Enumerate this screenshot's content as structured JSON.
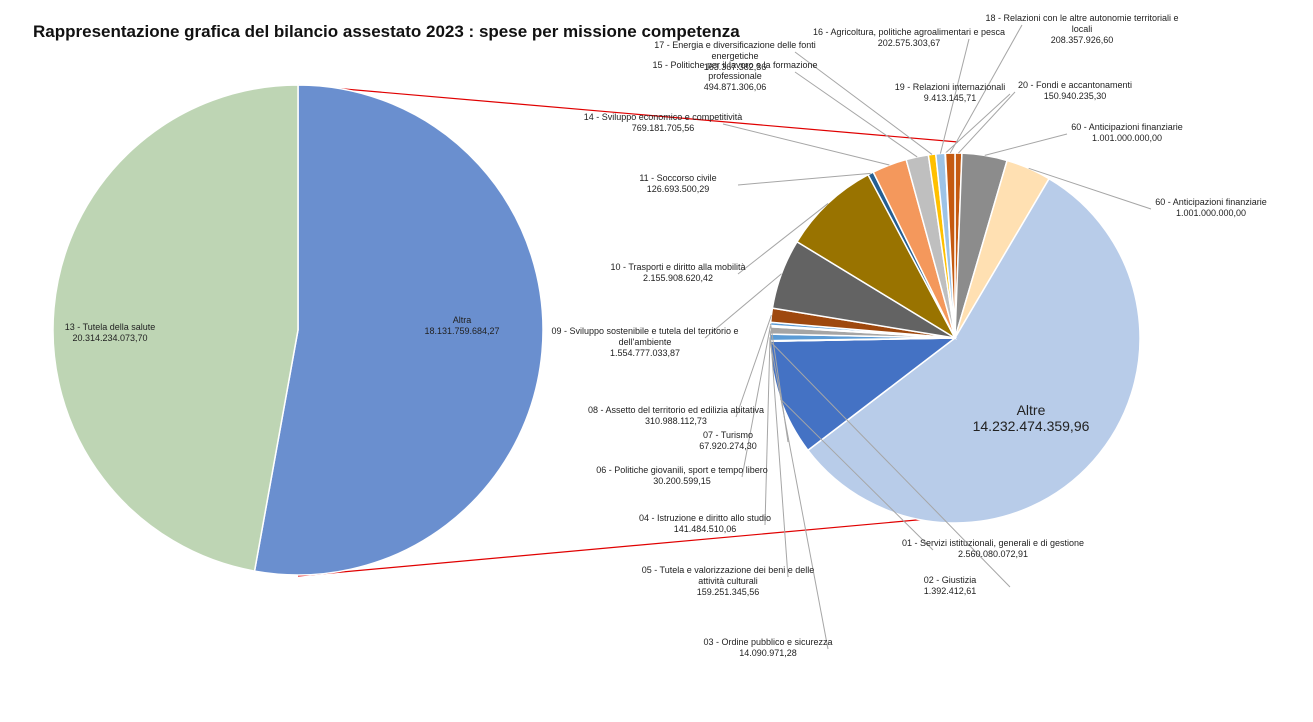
{
  "chart_data": [
    {
      "type": "pie",
      "title": "Rappresentazione grafica del bilancio assestato 2023 : spese per missione competenza",
      "categories": [
        "13 - Tutela della salute",
        "Altra"
      ],
      "values": [
        20314234073.7,
        18131759684.27
      ],
      "value_labels": [
        "20.314.234.073,70",
        "18.131.759.684,27"
      ],
      "colors": [
        "#6a8fcf",
        "#bed5b4"
      ]
    },
    {
      "type": "pie",
      "categories": [
        "20 - Fondi e accantonamenti",
        "60 - Anticipazioni finanziarie",
        "60 - Anticipazioni finanziarie",
        "Altre",
        "01 - Servizi istituzionali, generali e di gestione",
        "02 - Giustizia",
        "03 - Ordine pubblico e sicurezza",
        "04 - Istruzione e diritto allo studio",
        "05 - Tutela e valorizzazione dei beni e delle attività culturali",
        "06 - Politiche giovanili, sport e tempo libero",
        "07 - Turismo",
        "08 - Assetto del territorio ed edilizia abitativa",
        "09 - Sviluppo sostenibile e tutela del territorio e dell'ambiente",
        "10 - Trasporti e diritto alla mobilità",
        "11 - Soccorso civile",
        "14 - Sviluppo economico e competitività",
        "15 - Politiche per il lavoro e la formazione professionale",
        "17 - Energia e diversificazione delle fonti energetiche",
        "16 - Agricoltura, politiche agroalimentari e pesca",
        "19 - Relazioni internazionali",
        "18 - Relazioni con le altre autonomie territoriali e locali"
      ],
      "values": [
        150940235.3,
        1001000000,
        1001000000,
        14232474359.96,
        2560080072.91,
        1392412.61,
        14090971.28,
        141484510.06,
        159251345.56,
        30200599.15,
        67920274.3,
        310988112.73,
        1554777033.87,
        2155908620.42,
        126693500.29,
        769181705.56,
        494871306.06,
        163367382.36,
        202575303.67,
        9413145.71,
        208357926.6
      ],
      "value_labels": [
        "150.940.235,30",
        "1.001.000.000,00",
        "1.001.000.000,00",
        "14.232.474.359,96",
        "2.560.080.072,91",
        "1.392.412,61",
        "14.090.971,28",
        "141.484.510,06",
        "159.251.345,56",
        "30.200.599,15",
        "67.920.274,30",
        "310.988.112,73",
        "1.554.777.033,87",
        "2.155.908.620,42",
        "126.693.500,29",
        "769.181.705,56",
        "494.871.306,06",
        "163.367.382,36",
        "202.575.303,67",
        "9.413.145,71",
        "208.357.926,60"
      ],
      "colors": [
        "#c55a11",
        "#8c8c8c",
        "#ffe0b2",
        "#b8cce9",
        "#4472c4",
        "#ffc000",
        "#ffc000",
        "#5b9bd5",
        "#a5a5a5",
        "#ffc000",
        "#5b9bd5",
        "#9e480e",
        "#636363",
        "#997300",
        "#255e91",
        "#f4985c",
        "#bfbfbf",
        "#ffc000",
        "#9dc3e6",
        "#70ad47",
        "#c55a11"
      ]
    }
  ]
}
